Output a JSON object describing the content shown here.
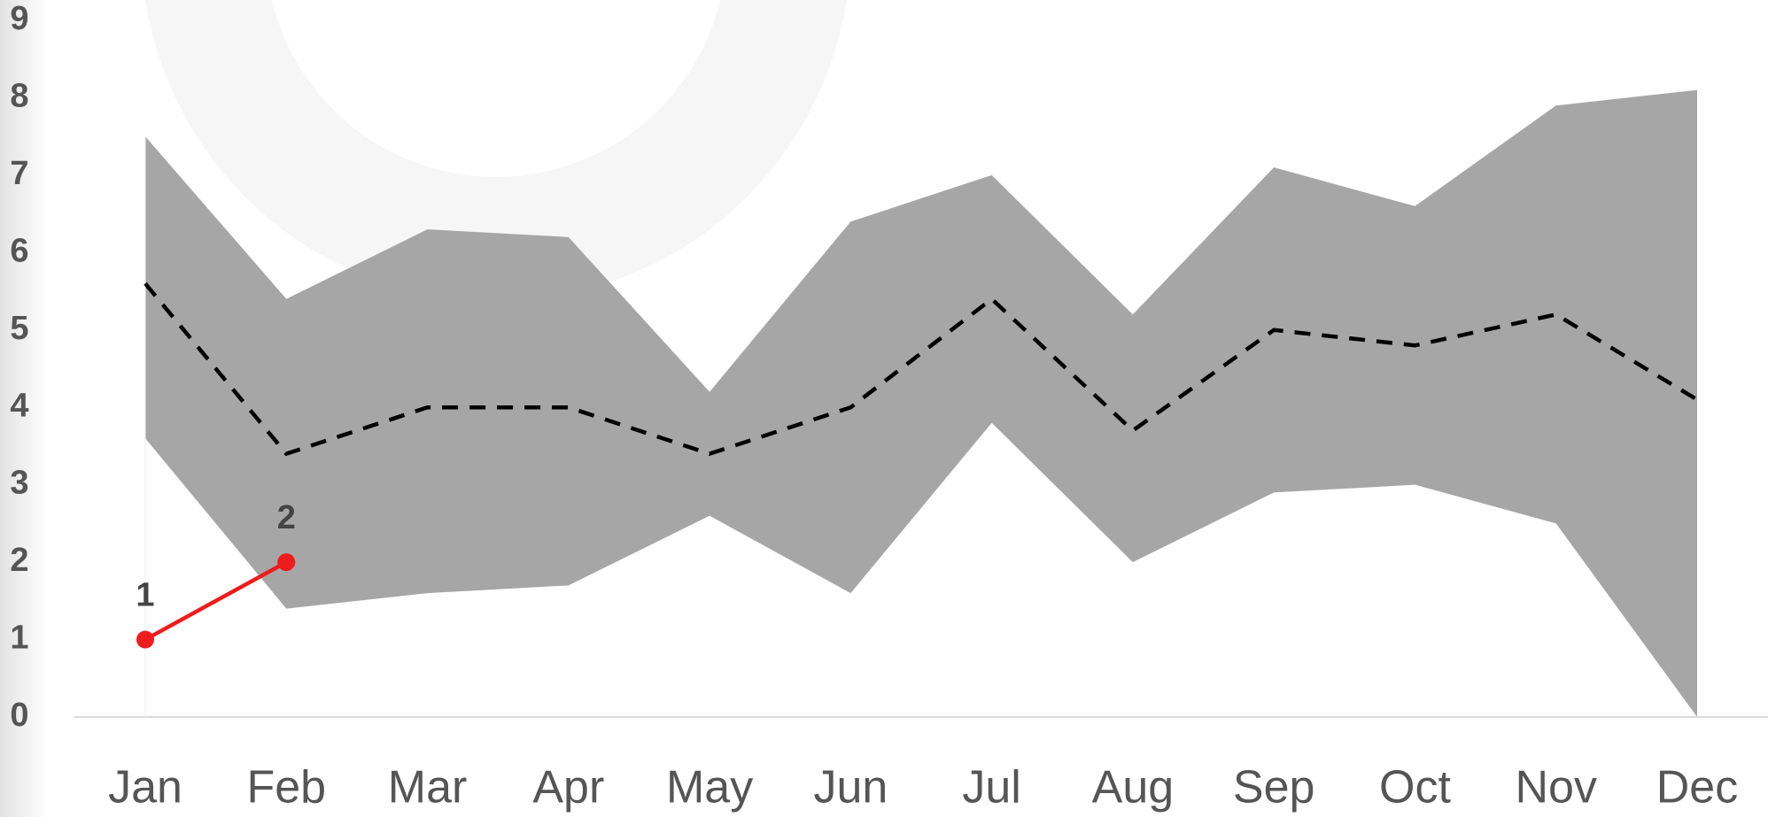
{
  "chart_data": {
    "type": "line",
    "categories": [
      "Jan",
      "Feb",
      "Mar",
      "Apr",
      "May",
      "Jun",
      "Jul",
      "Aug",
      "Sep",
      "Oct",
      "Nov",
      "Dec"
    ],
    "band": {
      "color": "#a6a6a6",
      "upper": [
        7.5,
        5.4,
        6.3,
        6.2,
        4.2,
        6.4,
        7.0,
        5.2,
        7.1,
        6.6,
        7.9,
        8.1
      ],
      "lower": [
        3.6,
        1.4,
        1.6,
        1.7,
        2.6,
        1.6,
        3.8,
        2.0,
        2.9,
        3.0,
        2.5,
        0
      ]
    },
    "series": [
      {
        "color": "#000000",
        "dashed": true,
        "markers": false,
        "data_labels": false,
        "values": [
          5.6,
          3.4,
          4.0,
          4.0,
          3.4,
          4.0,
          5.4,
          3.7,
          5.0,
          4.8,
          5.2,
          4.1
        ]
      },
      {
        "color": "#ee1c1c",
        "dashed": false,
        "markers": true,
        "data_labels": true,
        "values": [
          1,
          2,
          null,
          null,
          null,
          null,
          null,
          null,
          null,
          null,
          null,
          null
        ]
      }
    ],
    "ylim": [
      0,
      9
    ],
    "yticks": [
      0,
      1,
      2,
      3,
      4,
      5,
      6,
      7,
      8,
      9
    ],
    "grid": false
  }
}
